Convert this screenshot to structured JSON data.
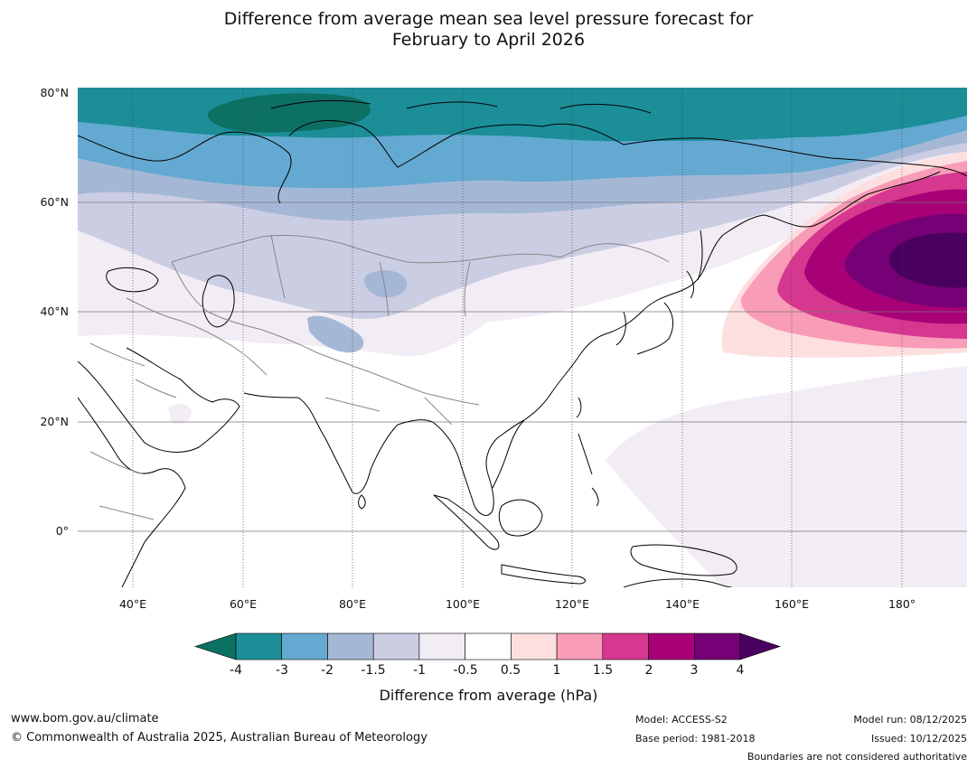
{
  "title_line1": "Difference from average mean sea level pressure forecast for",
  "title_line2": "February to April 2026",
  "map": {
    "lon_range": [
      30,
      192
    ],
    "lat_range": [
      -10,
      81
    ],
    "lat_labels": [
      "80°N",
      "60°N",
      "40°N",
      "20°N",
      "0°"
    ],
    "lon_labels": [
      "40°E",
      "60°E",
      "80°E",
      "100°E",
      "120°E",
      "140°E",
      "160°E",
      "180°"
    ]
  },
  "colorbar": {
    "title": "Difference from average (hPa)",
    "ticks": [
      "-4",
      "-3",
      "-2",
      "-1.5",
      "-1",
      "-0.5",
      "0.5",
      "1",
      "1.5",
      "2",
      "3",
      "4"
    ],
    "colors": [
      "#0c7063",
      "#1b8e98",
      "#64a9d1",
      "#a4b8d6",
      "#cbcde3",
      "#f2ecf5",
      "#ffffff",
      "#fddfdf",
      "#f89cb7",
      "#d7388f",
      "#a80077",
      "#760075",
      "#4a005f"
    ]
  },
  "footer": {
    "website": "www.bom.gov.au/climate",
    "copyright": "© Commonwealth of Australia 2025, Australian Bureau of Meteorology",
    "model": "Model: ACCESS-S2",
    "base_period": "Base period: 1981-2018",
    "model_run": "Model run: 08/12/2025",
    "issued": "Issued: 10/12/2025",
    "disclaimer": "Boundaries are not considered authoritative"
  }
}
